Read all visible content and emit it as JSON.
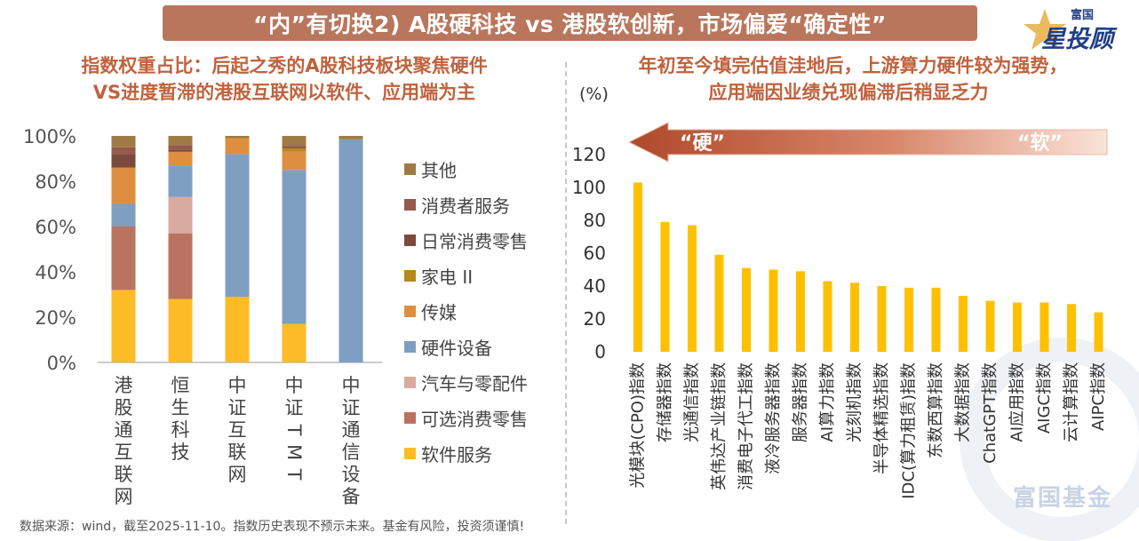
{
  "header": {
    "title": "“内”有切换2) A股硬科技 vs 港股软创新，市场偏爱“确定性”",
    "logo_small": "富国",
    "logo_big": "星投顾"
  },
  "left_panel": {
    "title_line1": "指数权重占比：后起之秀的A股科技板块聚焦硬件",
    "title_line2": "VS进度暂滞的港股互联网以软件、应用端为主"
  },
  "right_panel": {
    "title_line1": "年初至今填完估值洼地后，上游算力硬件较为强势，",
    "title_line2": "应用端因业绩兑现偏滞后稍显乏力",
    "unit": "(%)",
    "arrow_left_label": "“硬”",
    "arrow_right_label": "“软”"
  },
  "footer": {
    "source": "数据来源：wind，截至2025-11-10。指数历史表现不预示未来。基金有风险，投资须谨慎!",
    "watermark": "富国基金"
  },
  "colors": {
    "title_bg": "#b9765c",
    "subtitle": "#c0623d",
    "bar_yellow": "#ffc000",
    "arrow_dark": "#b0492a",
    "arrow_light": "#fbe3d8"
  },
  "chart_data": [
    {
      "type": "bar",
      "stacked": true,
      "categories": [
        "港股通互联网",
        "恒生科技",
        "中证互联网",
        "中证TMT",
        "中证通信设备"
      ],
      "ylim": [
        0,
        100
      ],
      "yticks": [
        "0%",
        "20%",
        "40%",
        "60%",
        "80%",
        "100%"
      ],
      "series": [
        {
          "name": "软件服务",
          "color": "#fdbb26",
          "values": [
            32,
            28,
            29,
            17,
            0
          ]
        },
        {
          "name": "可选消费零售",
          "color": "#b97360",
          "values": [
            28,
            29,
            0,
            0,
            0
          ]
        },
        {
          "name": "汽车与零配件",
          "color": "#d8aaa0",
          "values": [
            0,
            16,
            0,
            0,
            0
          ]
        },
        {
          "name": "硬件设备",
          "color": "#7f9fc2",
          "values": [
            10,
            14,
            63,
            68,
            98.5
          ]
        },
        {
          "name": "传媒",
          "color": "#dd8f3f",
          "values": [
            16,
            6,
            7,
            8,
            0
          ]
        },
        {
          "name": "家电 II",
          "color": "#b58a1d",
          "values": [
            0,
            0,
            0,
            1.5,
            0
          ]
        },
        {
          "name": "日常消费零售",
          "color": "#7b4a3c",
          "values": [
            6,
            1,
            0,
            0,
            0
          ]
        },
        {
          "name": "消费者服务",
          "color": "#955a4d",
          "values": [
            3,
            2,
            0,
            1,
            0
          ]
        },
        {
          "name": "其他",
          "color": "#a07a44",
          "values": [
            5,
            4,
            1,
            4.5,
            1.5
          ]
        }
      ]
    },
    {
      "type": "bar",
      "categories": [
        "光模块(CPO)指数",
        "存储器指数",
        "光通信指数",
        "英伟达产业链指数",
        "消费电子代工指数",
        "液冷服务器指数",
        "服务器指数",
        "AI算力指数",
        "光刻机指数",
        "半导体精选指数",
        "IDC(算力租赁)指数",
        "东数西算指数",
        "大数据指数",
        "ChatGPT指数",
        "AI应用指数",
        "AIGC指数",
        "云计算指数",
        "AIPC指数"
      ],
      "values": [
        103,
        79,
        77,
        59,
        51,
        50,
        49,
        43,
        42,
        40,
        39,
        39,
        34,
        31,
        30,
        30,
        29,
        24
      ],
      "ylim": [
        0,
        120
      ],
      "yticks": [
        0,
        20,
        40,
        60,
        80,
        100,
        120
      ],
      "ylabel": "(%)"
    }
  ]
}
